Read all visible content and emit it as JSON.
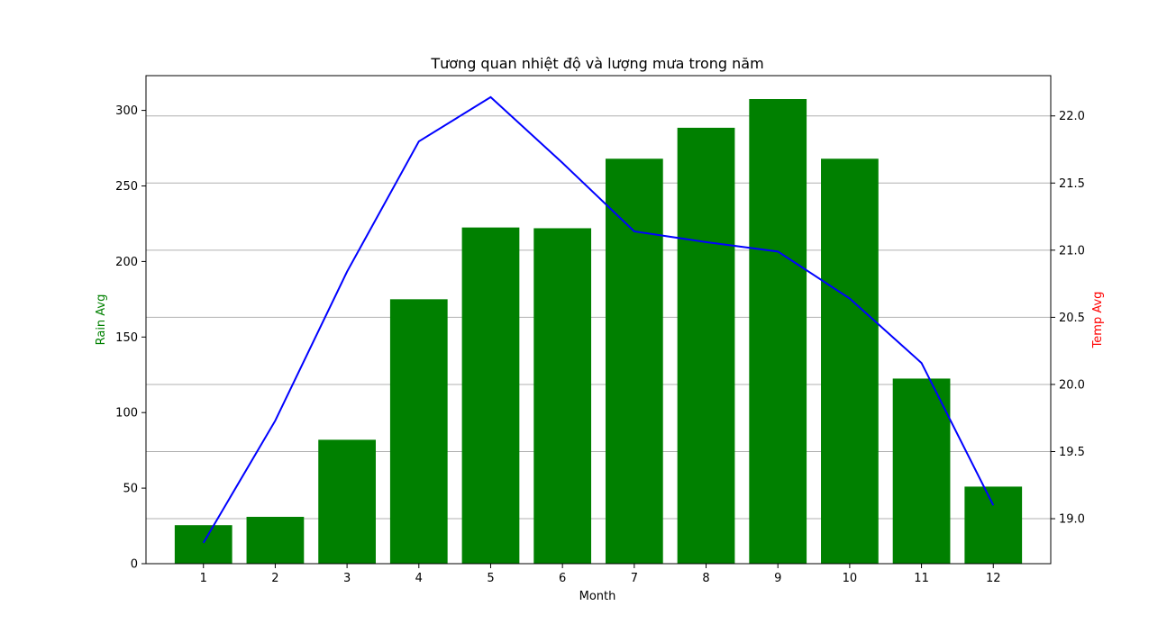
{
  "chart_data": {
    "type": "bar+line",
    "title": "Tương quan nhiệt độ và lượng mưa trong năm",
    "xlabel": "Month",
    "ylabel_left": "Rain Avg",
    "ylabel_right": "Temp Avg",
    "categories": [
      "1",
      "2",
      "3",
      "4",
      "5",
      "6",
      "7",
      "8",
      "9",
      "10",
      "11",
      "12"
    ],
    "series": [
      {
        "type": "bar",
        "axis": "left",
        "color": "#008000",
        "values": [
          25.5,
          31,
          82,
          175,
          222.5,
          222,
          268,
          288.5,
          307.5,
          268,
          122.5,
          51
        ]
      },
      {
        "type": "line",
        "axis": "right",
        "color": "#0000ff",
        "values": [
          18.82,
          19.73,
          20.84,
          21.81,
          22.14,
          21.65,
          21.14,
          21.06,
          20.99,
          20.64,
          20.16,
          19.1
        ]
      }
    ],
    "ylim_left": [
      0,
      323
    ],
    "yticks_left": [
      0,
      50,
      100,
      150,
      200,
      250,
      300
    ],
    "ylim_right": [
      18.665,
      22.3
    ],
    "yticks_right": [
      19.0,
      19.5,
      20.0,
      20.5,
      21.0,
      21.5,
      22.0
    ],
    "ytick_labels_right": [
      "19.0",
      "19.5",
      "20.0",
      "20.5",
      "21.0",
      "21.5",
      "22.0"
    ],
    "grid": "right-axis horizontal",
    "left_label_color": "#008000",
    "right_label_color": "#ff0000"
  }
}
